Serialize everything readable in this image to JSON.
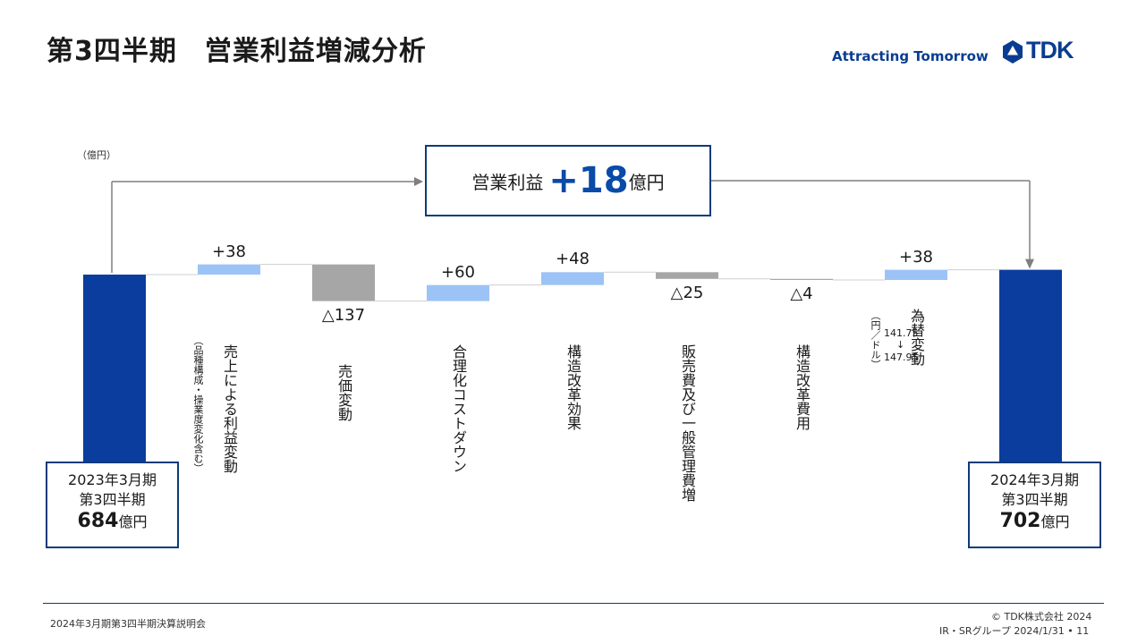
{
  "header": {
    "title": "第3四半期　営業利益増減分析",
    "tagline": "Attracting Tomorrow",
    "logo_text": "TDK"
  },
  "colors": {
    "total_bar": "#0a3d9e",
    "increase": "#9cc3f5",
    "decrease": "#a6a6a6",
    "frame": "#0d3b7a",
    "accent": "#0a4aa8"
  },
  "chart_data": {
    "type": "bar",
    "subtype": "waterfall",
    "unit": "（億円）",
    "start": {
      "value": 684,
      "line1": "2023年3月期",
      "line2": "第3四半期",
      "number": "684",
      "suffix": "億円"
    },
    "end": {
      "value": 702,
      "line1": "2024年3月期",
      "line2": "第3四半期",
      "number": "702",
      "suffix": "億円"
    },
    "total_change": {
      "prefix": "営業利益",
      "number": "+18",
      "suffix": "億円"
    },
    "steps": [
      {
        "delta": 38,
        "label": "+38",
        "category": "売上による利益変動",
        "note": "（品種構成・操業度変化含む）"
      },
      {
        "delta": -137,
        "label": "△137",
        "category": "売価変動",
        "note": ""
      },
      {
        "delta": 60,
        "label": "+60",
        "category": "合理化コストダウン",
        "note": ""
      },
      {
        "delta": 48,
        "label": "+48",
        "category": "構造改革効果",
        "note": ""
      },
      {
        "delta": -25,
        "label": "△25",
        "category": "販売費及び一般管理費増",
        "note": ""
      },
      {
        "delta": -4,
        "label": "△4",
        "category": "構造改革費用",
        "note": ""
      },
      {
        "delta": 38,
        "label": "+38",
        "category": "為替変動",
        "note": "（円／ドル）"
      }
    ],
    "fx_note": {
      "from": "141.75",
      "arrow": "↓",
      "to": "147.95"
    }
  },
  "footer": {
    "left": "2024年3月期第3四半期決算説明会",
    "copyright": "© TDK株式会社 2024",
    "page": "IR・SRグループ  2024/1/31 • 11"
  }
}
